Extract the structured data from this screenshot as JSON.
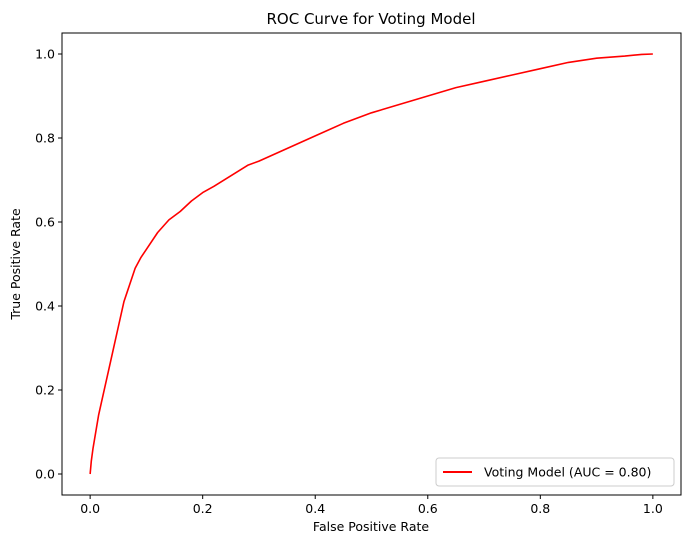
{
  "chart_data": {
    "type": "line",
    "title": "ROC Curve for Voting Model",
    "xlabel": "False Positive Rate",
    "ylabel": "True Positive Rate",
    "xlim": [
      -0.05,
      1.05
    ],
    "ylim": [
      -0.05,
      1.05
    ],
    "xticks": [
      0.0,
      0.2,
      0.4,
      0.6,
      0.8,
      1.0
    ],
    "yticks": [
      0.0,
      0.2,
      0.4,
      0.6,
      0.8,
      1.0
    ],
    "xtick_labels": [
      "0.0",
      "0.2",
      "0.4",
      "0.6",
      "0.8",
      "1.0"
    ],
    "ytick_labels": [
      "0.0",
      "0.2",
      "0.4",
      "0.6",
      "0.8",
      "1.0"
    ],
    "grid": false,
    "legend_position": "lower-right",
    "series": [
      {
        "name": "Voting Model (AUC = 0.80)",
        "color": "#ff0000",
        "x": [
          0.0,
          0.002,
          0.005,
          0.01,
          0.015,
          0.02,
          0.03,
          0.04,
          0.05,
          0.06,
          0.07,
          0.08,
          0.09,
          0.1,
          0.12,
          0.14,
          0.16,
          0.18,
          0.2,
          0.22,
          0.25,
          0.28,
          0.3,
          0.35,
          0.4,
          0.45,
          0.5,
          0.55,
          0.6,
          0.65,
          0.7,
          0.75,
          0.8,
          0.85,
          0.9,
          0.95,
          0.98,
          1.0
        ],
        "y": [
          0.0,
          0.03,
          0.06,
          0.1,
          0.14,
          0.17,
          0.23,
          0.29,
          0.35,
          0.41,
          0.45,
          0.49,
          0.515,
          0.535,
          0.575,
          0.605,
          0.625,
          0.65,
          0.67,
          0.685,
          0.71,
          0.735,
          0.745,
          0.775,
          0.805,
          0.835,
          0.86,
          0.88,
          0.9,
          0.92,
          0.935,
          0.95,
          0.965,
          0.98,
          0.99,
          0.995,
          0.999,
          1.0
        ]
      }
    ]
  }
}
